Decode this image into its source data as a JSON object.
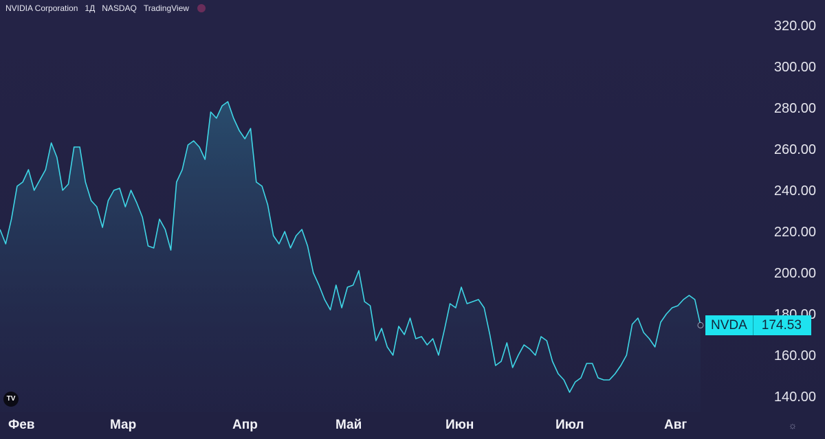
{
  "header": {
    "symbol_name": "NVIDIA Corporation",
    "interval": "1Д",
    "exchange": "NASDAQ",
    "provider": "TradingView"
  },
  "price_tag": {
    "symbol": "NVDA",
    "value": "174.53"
  },
  "colors": {
    "line": "#3fd6e6",
    "tag": "#1ee3ef",
    "background": "#22223f"
  },
  "icons": [
    "tradingview-logo-icon",
    "settings-icon",
    "indicator-dot-icon"
  ],
  "chart_data": {
    "type": "area",
    "series": [
      {
        "values": [
          221,
          214,
          226,
          242,
          244,
          250,
          240,
          245,
          250,
          263,
          256,
          240,
          243,
          261,
          261,
          244,
          235,
          232,
          222,
          235,
          240,
          241,
          232,
          240,
          234,
          227,
          213,
          212,
          226,
          221,
          211,
          244,
          250,
          262,
          264,
          261,
          255,
          278,
          275,
          281,
          283,
          275,
          269,
          265,
          270,
          244,
          242,
          233,
          218,
          214,
          220,
          212,
          218,
          221,
          213,
          200,
          194,
          187,
          182,
          194,
          183,
          193,
          194,
          201,
          186,
          184,
          167,
          173,
          164,
          160,
          174,
          170,
          178,
          168,
          169,
          165,
          168,
          160,
          172,
          185,
          183,
          193,
          185,
          186,
          187,
          183,
          170,
          155,
          157,
          166,
          154,
          160,
          165,
          163,
          160,
          169,
          167,
          157,
          151,
          148,
          142,
          147,
          149,
          156,
          156,
          149,
          148,
          148,
          151,
          155,
          160,
          175,
          178,
          171,
          168,
          164,
          176,
          180,
          183,
          184,
          187,
          189,
          187,
          174.53
        ]
      }
    ],
    "x_tick_labels": [
      "Фев",
      "Мар",
      "Апр",
      "Май",
      "Июн",
      "Июл",
      "Авг"
    ],
    "y_tick_labels": [
      "140.00",
      "160.00",
      "180.00",
      "200.00",
      "220.00",
      "240.00",
      "260.00",
      "280.00",
      "300.00",
      "320.00"
    ],
    "ylim": [
      135,
      325
    ],
    "last_value": 174.53,
    "grid": false
  }
}
